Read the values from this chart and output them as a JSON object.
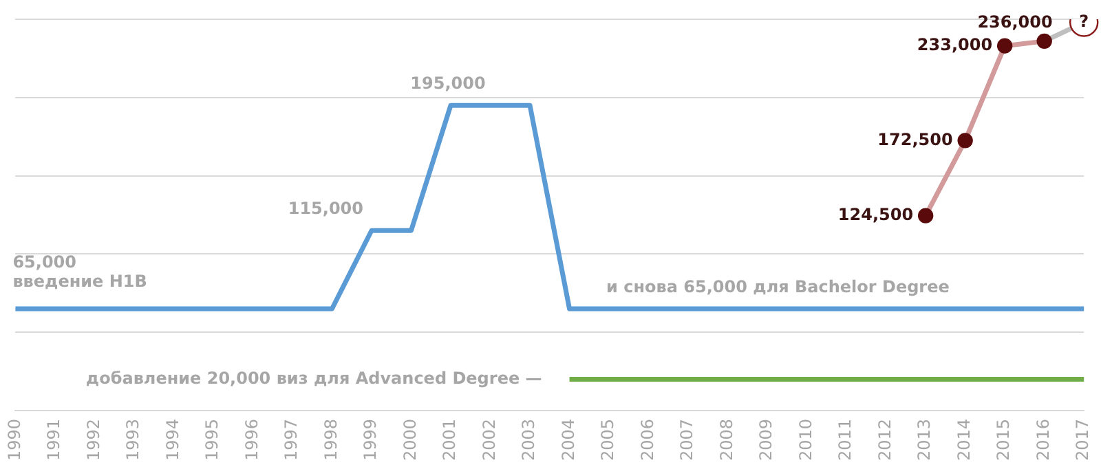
{
  "chart_data": {
    "type": "line",
    "categories": [
      "1990",
      "1991",
      "1992",
      "1993",
      "1994",
      "1995",
      "1996",
      "1997",
      "1998",
      "1999",
      "2000",
      "2001",
      "2002",
      "2003",
      "2004",
      "2005",
      "2006",
      "2007",
      "2008",
      "2009",
      "2010",
      "2011",
      "2012",
      "2013",
      "2014",
      "2015",
      "2016",
      "2017"
    ],
    "series": [
      {
        "color": "#5b9bd5",
        "marker": "none",
        "values": [
          65000,
          65000,
          65000,
          65000,
          65000,
          65000,
          65000,
          65000,
          65000,
          115000,
          115000,
          195000,
          195000,
          195000,
          65000,
          65000,
          65000,
          65000,
          65000,
          65000,
          65000,
          65000,
          65000,
          65000,
          65000,
          65000,
          65000,
          65000
        ]
      },
      {
        "color": "#70ad47",
        "marker": "none",
        "values": [
          null,
          null,
          null,
          null,
          null,
          null,
          null,
          null,
          null,
          null,
          null,
          null,
          null,
          null,
          20000,
          20000,
          20000,
          20000,
          20000,
          20000,
          20000,
          20000,
          20000,
          20000,
          20000,
          20000,
          20000,
          20000
        ]
      },
      {
        "color": "#d29a9a",
        "marker": "circle",
        "values": [
          null,
          null,
          null,
          null,
          null,
          null,
          null,
          null,
          null,
          null,
          null,
          null,
          null,
          null,
          null,
          null,
          null,
          null,
          null,
          null,
          null,
          null,
          null,
          124500,
          172500,
          233000,
          236000,
          null
        ],
        "value_labels": [
          null,
          null,
          null,
          null,
          null,
          null,
          null,
          null,
          null,
          null,
          null,
          null,
          null,
          null,
          null,
          null,
          null,
          null,
          null,
          null,
          null,
          null,
          null,
          "124,500",
          "172,500",
          "233,000",
          "236,000",
          null
        ]
      },
      {
        "color": "#bfbfbf",
        "marker": "circle",
        "values": [
          null,
          null,
          null,
          null,
          null,
          null,
          null,
          null,
          null,
          null,
          null,
          null,
          null,
          null,
          null,
          null,
          null,
          null,
          null,
          null,
          null,
          null,
          null,
          null,
          null,
          null,
          236000,
          248000
        ],
        "value_labels": [
          null,
          null,
          null,
          null,
          null,
          null,
          null,
          null,
          null,
          null,
          null,
          null,
          null,
          null,
          null,
          null,
          null,
          null,
          null,
          null,
          null,
          null,
          null,
          null,
          null,
          null,
          null,
          "?"
        ]
      }
    ],
    "annotations": [
      {
        "text": "65,000",
        "x": "1990",
        "y": 65000
      },
      {
        "text": "введение H1B",
        "x": "1990",
        "y": 65000
      },
      {
        "text": "115,000",
        "x": "1999",
        "y": 115000
      },
      {
        "text": "195,000",
        "x": "2001",
        "y": 195000
      },
      {
        "text": "и снова 65,000 для Bachelor Degree",
        "x": "2005",
        "y": 65000
      },
      {
        "text": "добавление 20,000 виз для Advanced Degree —",
        "x": "2004",
        "y": 20000
      }
    ],
    "ylim": [
      0,
      250000
    ],
    "yticks": [
      0,
      50000,
      100000,
      150000,
      200000,
      250000
    ],
    "grid": "y",
    "legend": false,
    "tick_labels": "x"
  }
}
